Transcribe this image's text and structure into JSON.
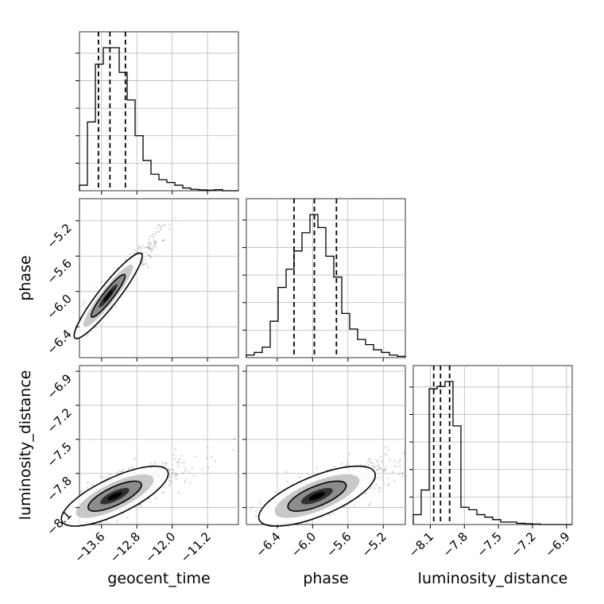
{
  "chart_data": {
    "type": "corner",
    "parameters": [
      "geocent_time",
      "phase",
      "luminosity_distance"
    ],
    "ranges": {
      "geocent_time": [
        -14.1,
        -10.5
      ],
      "phase": [
        -6.75,
        -4.95
      ],
      "luminosity_distance": [
        -8.25,
        -6.85
      ]
    },
    "ticks": {
      "geocent_time": [
        "−13.6",
        "−12.8",
        "−12.0",
        "−11.2"
      ],
      "geocent_time_values": [
        -13.6,
        -12.8,
        -12.0,
        -11.2
      ],
      "phase": [
        "−6.4",
        "−6.0",
        "−5.6",
        "−5.2"
      ],
      "phase_values": [
        -6.4,
        -6.0,
        -5.6,
        -5.2
      ],
      "luminosity_distance": [
        "−8.1",
        "−7.8",
        "−7.5",
        "−7.2",
        "−6.9"
      ],
      "luminosity_distance_values": [
        -8.1,
        -7.8,
        -7.5,
        -7.2,
        -6.9
      ]
    },
    "quantiles": {
      "geocent_time": [
        -13.67,
        -13.41,
        -13.06
      ],
      "phase": [
        -6.21,
        -5.98,
        -5.73
      ],
      "luminosity_distance": [
        -8.07,
        -8.01,
        -7.93
      ]
    },
    "histograms": {
      "geocent_time": {
        "edges_start": -14.1,
        "bin_width": 0.18,
        "counts": [
          2,
          25,
          46,
          52,
          52,
          43,
          33,
          20,
          11,
          6,
          4,
          3,
          2,
          1,
          0.5,
          0.3,
          0.2,
          0.4,
          0,
          0
        ]
      },
      "phase": {
        "edges_start": -6.75,
        "bin_width": 0.09,
        "counts": [
          1,
          2,
          4,
          14,
          27,
          34,
          41,
          48,
          55,
          50,
          39,
          31,
          17,
          11,
          7,
          5,
          3,
          2,
          1,
          0.5
        ]
      },
      "luminosity_distance": {
        "edges_start": -8.25,
        "bin_width": 0.07,
        "counts": [
          4,
          14,
          55,
          56,
          58,
          40,
          7,
          6,
          4,
          3,
          2,
          1,
          1,
          0.5,
          0.3,
          0.2,
          0,
          0,
          0,
          0
        ]
      }
    },
    "pairs": {
      "phase_vs_geocent_time": {
        "center": [
          -13.45,
          -6.05
        ],
        "spread": [
          0.35,
          0.22
        ],
        "correlation": 0.93
      },
      "luminosity_distance_vs_geocent_time": {
        "center": [
          -13.3,
          -8.0
        ],
        "spread": [
          0.55,
          0.12
        ],
        "correlation": 0.75
      },
      "luminosity_distance_vs_phase": {
        "center": [
          -5.95,
          -8.0
        ],
        "spread": [
          0.3,
          0.12
        ],
        "correlation": 0.7
      }
    },
    "grid": true,
    "legend": "none"
  }
}
